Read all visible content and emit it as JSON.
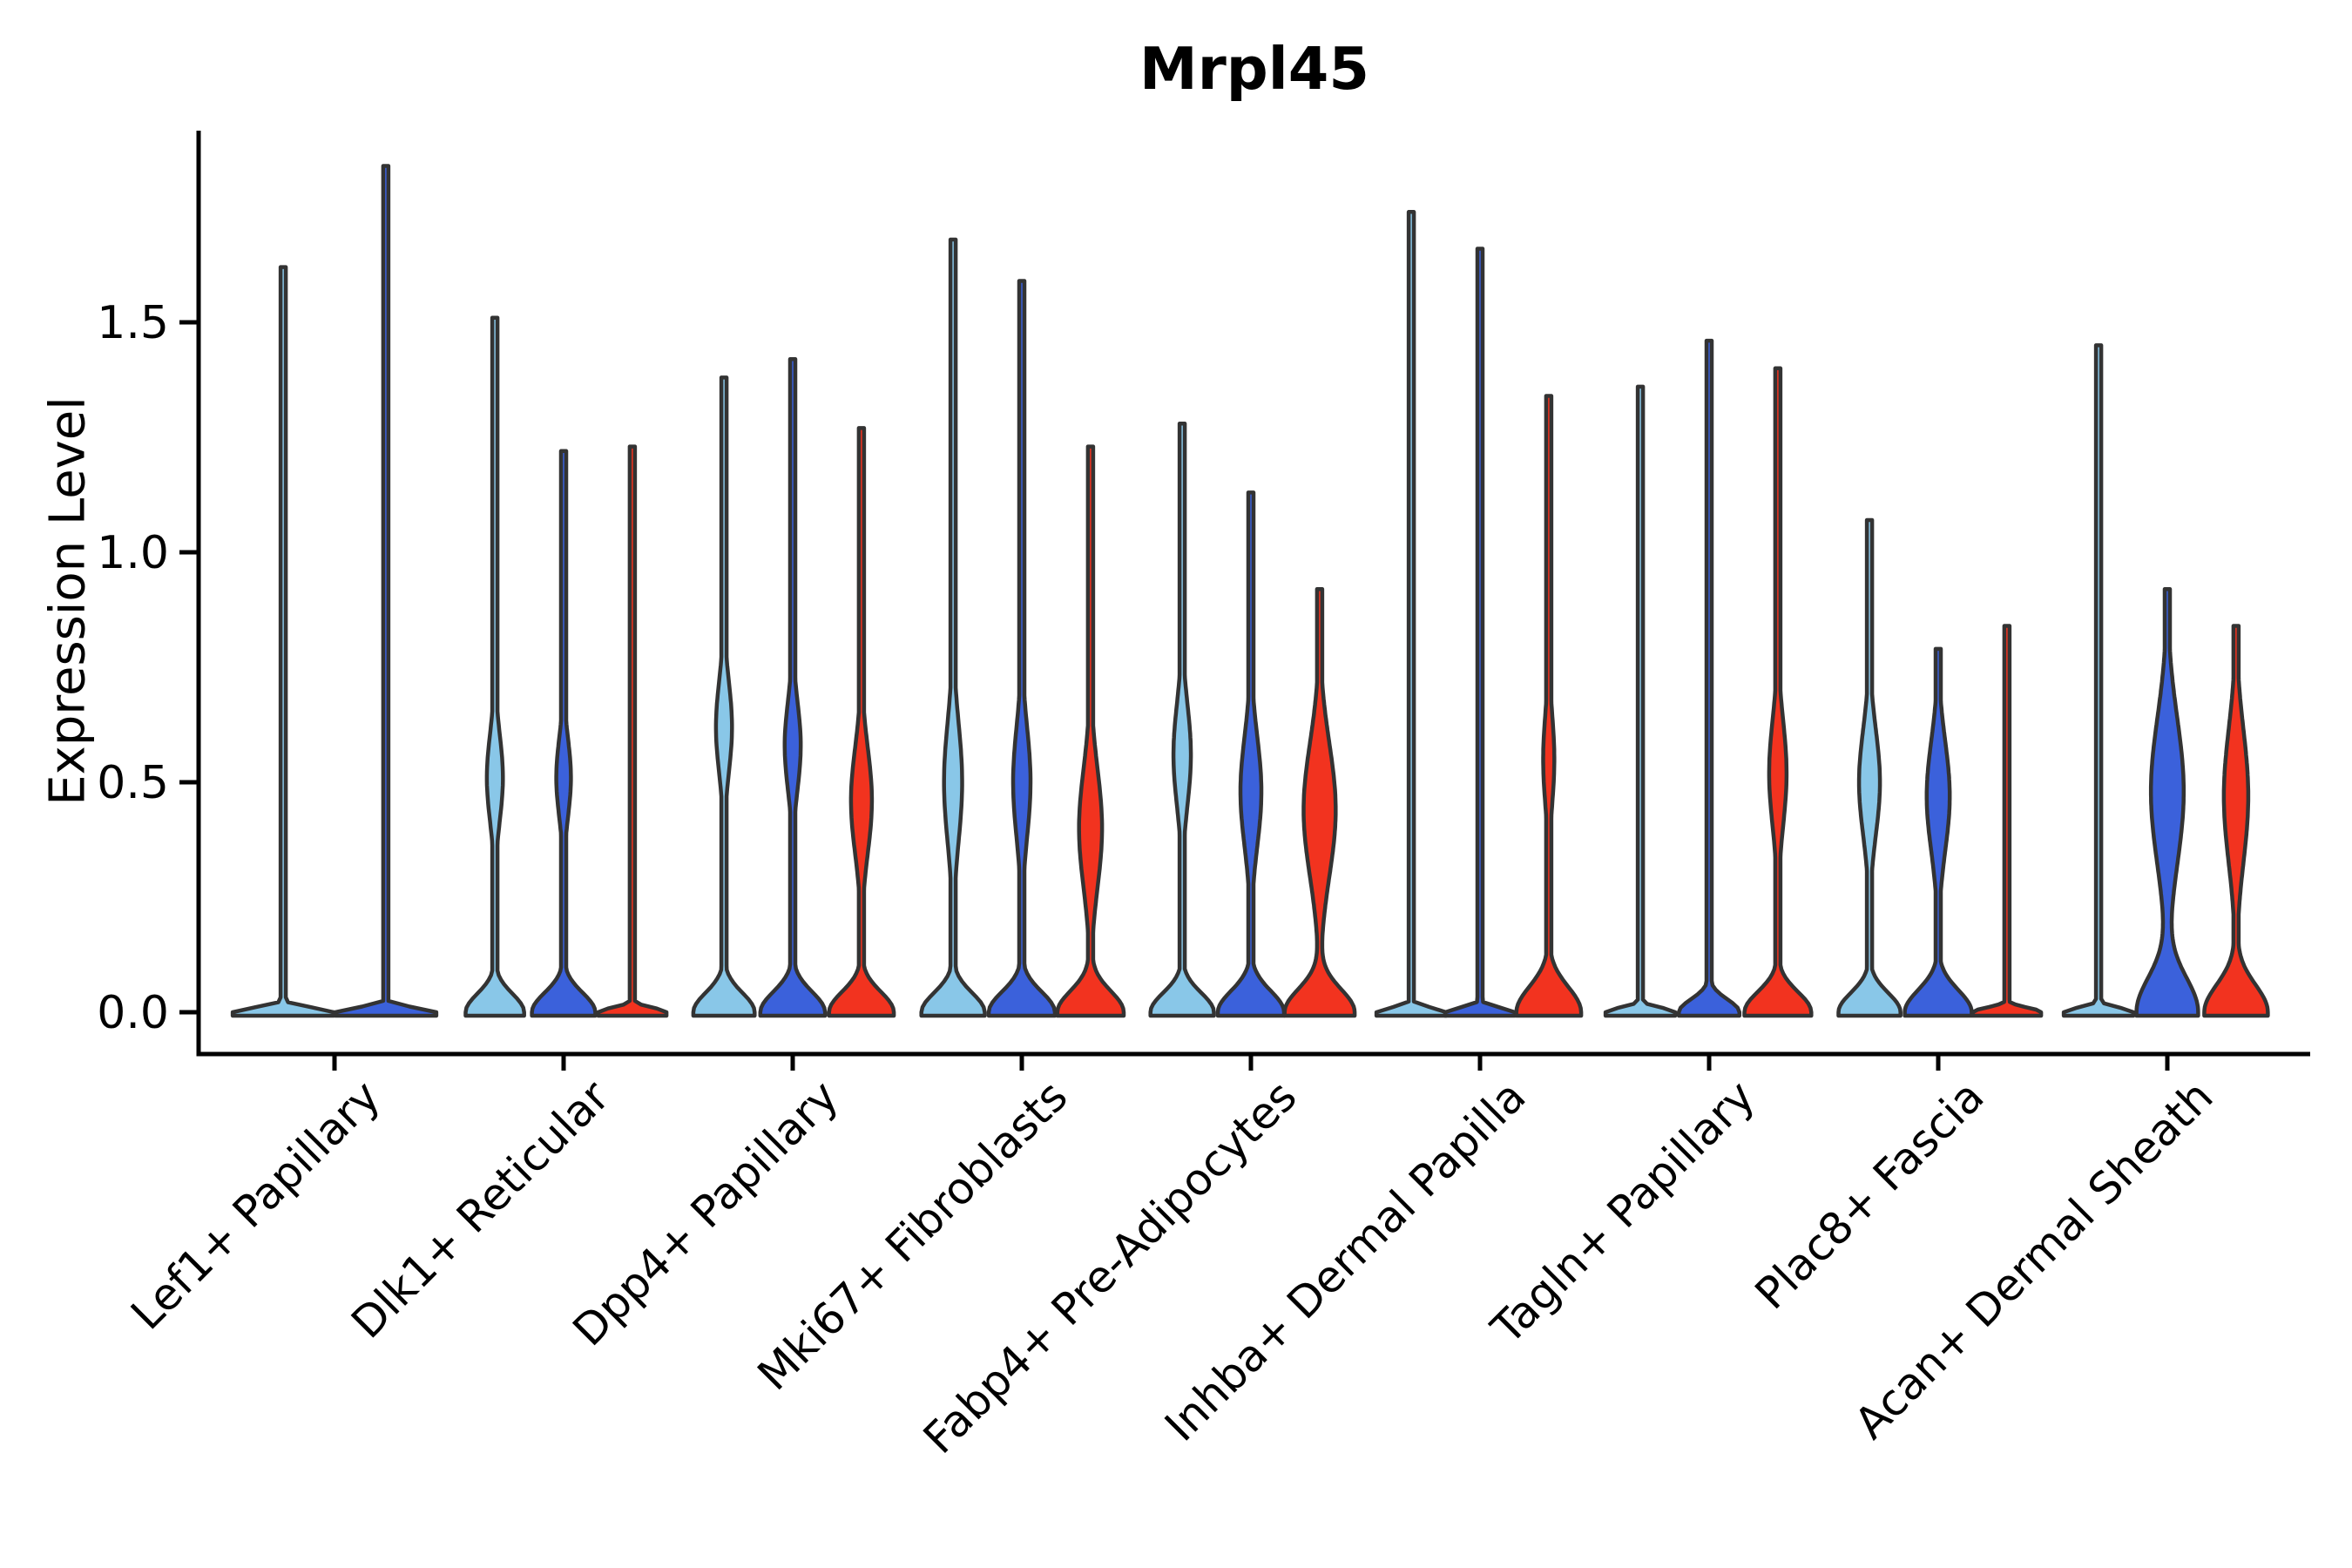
{
  "chart_data": {
    "type": "violin",
    "title": "Mrpl45",
    "ylabel": "Expression Level",
    "xlabel": "",
    "yticks": [
      "0.0",
      "0.5",
      "1.0",
      "1.5"
    ],
    "ytick_values": [
      0.0,
      0.5,
      1.0,
      1.5
    ],
    "ylim": [
      -0.09,
      1.92
    ],
    "grid": false,
    "legend_position": "none",
    "palette": {
      "light_blue": "#89C7E8",
      "blue": "#3B61DB",
      "red": "#F2331F"
    },
    "edge_color": "#333333",
    "categories": [
      "Lef1+ Papillary",
      "Dlk1+ Reticular",
      "Dpp4+ Papillary",
      "Mki67+ Fibroblasts",
      "Fabp4+ Pre-Adipocytes",
      "Inhba+ Dermal Papilla",
      "Tagln+ Papillary",
      "Plac8+ Fascia",
      "Acan+ Dermal Sheath"
    ],
    "groups": [
      {
        "category": "Lef1+ Papillary",
        "violins": [
          {
            "color": "light_blue",
            "offset": -0.224,
            "max_expression": 1.62,
            "base_width": 1.45,
            "base_sigma": 0.01,
            "bulge": null
          },
          {
            "color": "blue",
            "offset": 0.224,
            "max_expression": 1.84,
            "base_width": 1.45,
            "base_sigma": 0.01,
            "bulge": null
          }
        ]
      },
      {
        "category": "Dlk1+ Reticular",
        "violins": [
          {
            "color": "light_blue",
            "offset": -0.3,
            "max_expression": 1.51,
            "base_width": 0.84,
            "base_sigma": 0.04,
            "bulge": {
              "center": 0.51,
              "width": 0.23,
              "sigma": 0.095
            }
          },
          {
            "color": "blue",
            "offset": 0.0,
            "max_expression": 1.22,
            "base_width": 0.91,
            "base_sigma": 0.042,
            "bulge": {
              "center": 0.51,
              "width": 0.21,
              "sigma": 0.085
            }
          },
          {
            "color": "red",
            "offset": 0.3,
            "max_expression": 1.23,
            "base_width": 0.98,
            "base_sigma": 0.01,
            "bulge": null
          }
        ]
      },
      {
        "category": "Dpp4+ Papillary",
        "violins": [
          {
            "color": "light_blue",
            "offset": -0.3,
            "max_expression": 1.38,
            "base_width": 0.88,
            "base_sigma": 0.042,
            "bulge": {
              "center": 0.62,
              "width": 0.23,
              "sigma": 0.1
            }
          },
          {
            "color": "blue",
            "offset": 0.0,
            "max_expression": 1.42,
            "base_width": 0.93,
            "base_sigma": 0.044,
            "bulge": {
              "center": 0.58,
              "width": 0.23,
              "sigma": 0.095
            }
          },
          {
            "color": "red",
            "offset": 0.3,
            "max_expression": 1.27,
            "base_width": 0.93,
            "base_sigma": 0.044,
            "bulge": {
              "center": 0.46,
              "width": 0.3,
              "sigma": 0.115
            }
          }
        ]
      },
      {
        "category": "Mki67+ Fibroblasts",
        "violins": [
          {
            "color": "light_blue",
            "offset": -0.3,
            "max_expression": 1.68,
            "base_width": 0.91,
            "base_sigma": 0.042,
            "bulge": {
              "center": 0.5,
              "width": 0.26,
              "sigma": 0.13
            }
          },
          {
            "color": "blue",
            "offset": 0.0,
            "max_expression": 1.59,
            "base_width": 0.95,
            "base_sigma": 0.044,
            "bulge": {
              "center": 0.5,
              "width": 0.25,
              "sigma": 0.12
            }
          },
          {
            "color": "red",
            "offset": 0.3,
            "max_expression": 1.23,
            "base_width": 0.95,
            "base_sigma": 0.046,
            "bulge": {
              "center": 0.4,
              "width": 0.33,
              "sigma": 0.13
            }
          }
        ]
      },
      {
        "category": "Fabp4+ Pre-Adipocytes",
        "violins": [
          {
            "color": "light_blue",
            "offset": -0.3,
            "max_expression": 1.28,
            "base_width": 0.91,
            "base_sigma": 0.042,
            "bulge": {
              "center": 0.56,
              "width": 0.25,
              "sigma": 0.11
            }
          },
          {
            "color": "blue",
            "offset": 0.0,
            "max_expression": 1.13,
            "base_width": 0.95,
            "base_sigma": 0.046,
            "bulge": {
              "center": 0.48,
              "width": 0.3,
              "sigma": 0.12
            }
          },
          {
            "color": "red",
            "offset": 0.3,
            "max_expression": 0.92,
            "base_width": 1.0,
            "base_sigma": 0.05,
            "bulge": {
              "center": 0.44,
              "width": 0.46,
              "sigma": 0.145
            }
          }
        ]
      },
      {
        "category": "Inhba+ Dermal Papilla",
        "violins": [
          {
            "color": "light_blue",
            "offset": -0.3,
            "max_expression": 1.74,
            "base_width": 1.0,
            "base_sigma": 0.01,
            "bulge": null
          },
          {
            "color": "blue",
            "offset": 0.0,
            "max_expression": 1.66,
            "base_width": 1.0,
            "base_sigma": 0.01,
            "bulge": null
          },
          {
            "color": "red",
            "offset": 0.3,
            "max_expression": 1.34,
            "base_width": 0.93,
            "base_sigma": 0.055,
            "bulge": {
              "center": 0.55,
              "width": 0.16,
              "sigma": 0.1
            }
          }
        ]
      },
      {
        "category": "Tagln+ Papillary",
        "violins": [
          {
            "color": "light_blue",
            "offset": -0.3,
            "max_expression": 1.36,
            "base_width": 1.0,
            "base_sigma": 0.01,
            "bulge": null
          },
          {
            "color": "blue",
            "offset": 0.0,
            "max_expression": 1.46,
            "base_width": 0.87,
            "base_sigma": 0.028,
            "bulge": null
          },
          {
            "color": "red",
            "offset": 0.3,
            "max_expression": 1.4,
            "base_width": 0.96,
            "base_sigma": 0.044,
            "bulge": {
              "center": 0.52,
              "width": 0.25,
              "sigma": 0.115
            }
          }
        ]
      },
      {
        "category": "Plac8+ Fascia",
        "violins": [
          {
            "color": "light_blue",
            "offset": -0.3,
            "max_expression": 1.07,
            "base_width": 0.89,
            "base_sigma": 0.042,
            "bulge": {
              "center": 0.5,
              "width": 0.3,
              "sigma": 0.115
            }
          },
          {
            "color": "blue",
            "offset": 0.0,
            "max_expression": 0.79,
            "base_width": 0.96,
            "base_sigma": 0.048,
            "bulge": {
              "center": 0.47,
              "width": 0.33,
              "sigma": 0.12
            }
          },
          {
            "color": "red",
            "offset": 0.3,
            "max_expression": 0.84,
            "base_width": 0.98,
            "base_sigma": 0.01,
            "bulge": null
          }
        ]
      },
      {
        "category": "Acan+ Dermal Sheath",
        "violins": [
          {
            "color": "light_blue",
            "offset": -0.3,
            "max_expression": 1.45,
            "base_width": 1.0,
            "base_sigma": 0.01,
            "bulge": null
          },
          {
            "color": "blue",
            "offset": 0.0,
            "max_expression": 0.92,
            "base_width": 0.88,
            "base_sigma": 0.075,
            "bulge": {
              "center": 0.48,
              "width": 0.47,
              "sigma": 0.16
            }
          },
          {
            "color": "red",
            "offset": 0.3,
            "max_expression": 0.84,
            "base_width": 0.91,
            "base_sigma": 0.06,
            "bulge": {
              "center": 0.47,
              "width": 0.35,
              "sigma": 0.145
            }
          }
        ]
      }
    ]
  }
}
